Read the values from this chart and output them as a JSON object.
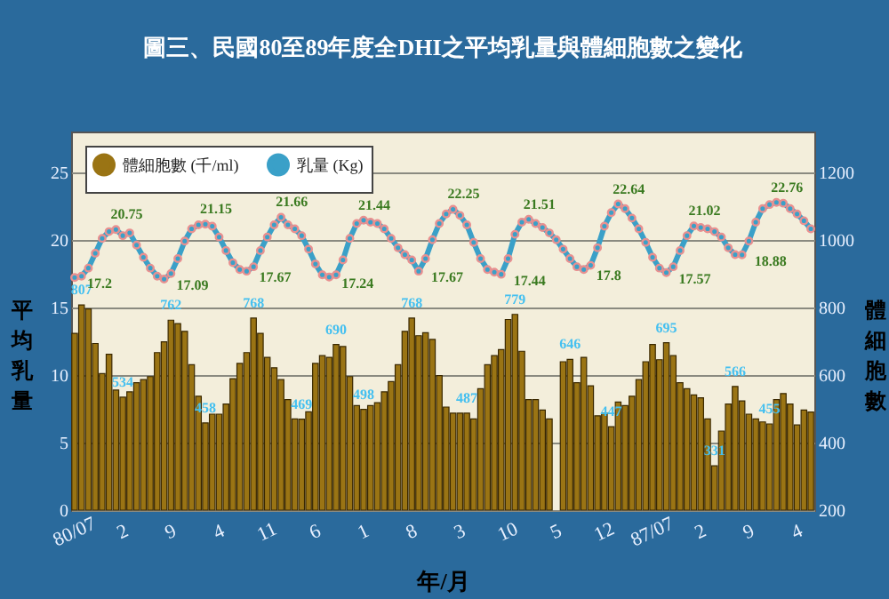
{
  "chart_data": {
    "type": "bar",
    "title": "圖三、民國80至89年度全DHI之平均乳量與體細胞數之變化",
    "xlabel": "年/月",
    "ylabel": "平均乳量",
    "y2label": "體細胞數",
    "categories": [
      "80/07",
      null,
      null,
      null,
      null,
      null,
      null,
      "2",
      null,
      null,
      null,
      null,
      null,
      null,
      "9",
      null,
      null,
      null,
      null,
      null,
      null,
      "4",
      null,
      null,
      null,
      null,
      null,
      null,
      "11",
      null,
      null,
      null,
      null,
      null,
      null,
      "6",
      null,
      null,
      null,
      null,
      null,
      null,
      "1",
      null,
      null,
      null,
      null,
      null,
      null,
      "8",
      null,
      null,
      null,
      null,
      null,
      null,
      "3",
      null,
      null,
      null,
      null,
      null,
      null,
      "10",
      null,
      null,
      null,
      null,
      null,
      null,
      "5",
      null,
      null,
      null,
      null,
      null,
      null,
      "12",
      null,
      null,
      null,
      null,
      null,
      null,
      "87/07",
      null,
      null,
      null,
      null,
      null,
      null,
      "2",
      null,
      null,
      null,
      null,
      null,
      null,
      "9",
      null,
      null,
      null,
      null,
      null,
      null,
      "4",
      null,
      null
    ],
    "ylim": [
      0,
      28
    ],
    "yticks": [
      0,
      5,
      10,
      15,
      20,
      25
    ],
    "y2lim": [
      200,
      1320
    ],
    "y2ticks": [
      200,
      400,
      600,
      800,
      1000,
      1200
    ],
    "grid": "y",
    "legend": "top left",
    "marker": "circle",
    "series": [
      {
        "name": "體細胞數 (千/ml)",
        "axis": "y2",
        "color": "#9a7414",
        "values": [
          723,
          807,
          795,
          693,
          604,
          661,
          555,
          534,
          550,
          577,
          586,
          595,
          666,
          698,
          762,
          752,
          729,
          630,
          537,
          458,
          484,
          484,
          514,
          589,
          634,
          666,
          768,
          723,
          652,
          621,
          586,
          527,
          470,
          469,
          491,
          634,
          657,
          652,
          690,
          684,
          595,
          509,
          498,
          509,
          518,
          550,
          580,
          630,
          729,
          768,
          716,
          725,
          705,
          598,
          505,
          487,
          487,
          487,
          470,
          559,
          630,
          657,
          675,
          764,
          779,
          670,
          527,
          527,
          496,
          470,
          null,
          639,
          646,
          577,
          652,
          568,
          479,
          487,
          447,
          520,
          509,
          537,
          586,
          639,
          690,
          645,
          695,
          657,
          577,
          559,
          541,
          532,
          470,
          331,
          434,
          514,
          566,
          523,
          484,
          470,
          461,
          455,
          527,
          545,
          514,
          452,
          496,
          490
        ],
        "value_labels": [
          null,
          "807",
          null,
          null,
          null,
          null,
          null,
          "534",
          null,
          null,
          null,
          null,
          null,
          null,
          "762",
          null,
          null,
          null,
          null,
          "458",
          null,
          null,
          null,
          null,
          null,
          null,
          "768",
          null,
          null,
          null,
          null,
          null,
          null,
          "469",
          null,
          null,
          null,
          null,
          "690",
          null,
          null,
          null,
          "498",
          null,
          null,
          null,
          null,
          null,
          null,
          "768",
          null,
          null,
          null,
          null,
          null,
          null,
          null,
          "487",
          null,
          null,
          null,
          null,
          null,
          null,
          "779",
          null,
          null,
          null,
          null,
          null,
          null,
          null,
          "646",
          null,
          null,
          null,
          null,
          null,
          "447",
          null,
          null,
          null,
          null,
          null,
          null,
          null,
          "695",
          null,
          null,
          null,
          null,
          null,
          null,
          "331",
          null,
          null,
          "566",
          null,
          null,
          null,
          null,
          "455",
          null,
          null,
          null,
          null,
          null,
          null
        ]
      },
      {
        "name": "乳量 (Kg)",
        "type": "line",
        "axis": "y",
        "color": "#3aa0c8",
        "values": [
          17.2,
          17.3,
          17.9,
          19.0,
          20.1,
          20.6,
          20.75,
          20.3,
          20.5,
          19.6,
          18.7,
          17.9,
          17.3,
          17.09,
          17.5,
          18.6,
          19.9,
          20.8,
          21.1,
          21.15,
          21.0,
          20.2,
          19.2,
          18.3,
          17.8,
          17.67,
          18.0,
          19.2,
          20.2,
          21.1,
          21.66,
          21.1,
          20.8,
          20.3,
          19.3,
          18.2,
          17.4,
          17.24,
          17.4,
          18.5,
          20.1,
          21.2,
          21.44,
          21.3,
          21.2,
          20.8,
          20.1,
          19.4,
          18.9,
          18.5,
          17.67,
          18.6,
          20.0,
          21.2,
          21.9,
          22.25,
          21.8,
          21.1,
          19.8,
          18.6,
          17.8,
          17.6,
          17.44,
          18.6,
          20.4,
          21.3,
          21.51,
          21.2,
          20.9,
          20.5,
          20.0,
          19.3,
          18.6,
          18.0,
          17.8,
          18.1,
          19.4,
          21.0,
          22.0,
          22.64,
          22.3,
          21.6,
          20.8,
          19.8,
          18.7,
          17.9,
          17.57,
          18.0,
          19.2,
          20.3,
          21.02,
          20.9,
          20.8,
          20.6,
          20.2,
          19.4,
          18.9,
          18.88,
          19.9,
          21.3,
          22.3,
          22.6,
          22.76,
          22.7,
          22.3,
          21.9,
          21.4,
          20.8
        ],
        "value_labels": [
          "17.2",
          null,
          null,
          null,
          null,
          null,
          "20.75",
          null,
          null,
          null,
          null,
          null,
          null,
          "17.09",
          null,
          null,
          null,
          null,
          null,
          "21.15",
          null,
          null,
          null,
          null,
          null,
          "17.67",
          null,
          null,
          null,
          null,
          "21.66",
          null,
          null,
          null,
          null,
          null,
          null,
          "17.24",
          null,
          null,
          null,
          null,
          "21.44",
          null,
          null,
          null,
          null,
          null,
          null,
          null,
          "17.67",
          null,
          null,
          null,
          null,
          "22.25",
          null,
          null,
          null,
          null,
          null,
          null,
          "17.44",
          null,
          null,
          null,
          "21.51",
          null,
          null,
          null,
          null,
          null,
          null,
          null,
          "17.8",
          null,
          null,
          null,
          null,
          "22.64",
          null,
          null,
          null,
          null,
          null,
          null,
          "17.57",
          null,
          null,
          null,
          "21.02",
          null,
          null,
          null,
          null,
          null,
          null,
          "18.88",
          null,
          null,
          null,
          null,
          "22.76",
          null,
          null,
          null,
          null,
          null
        ]
      }
    ]
  }
}
